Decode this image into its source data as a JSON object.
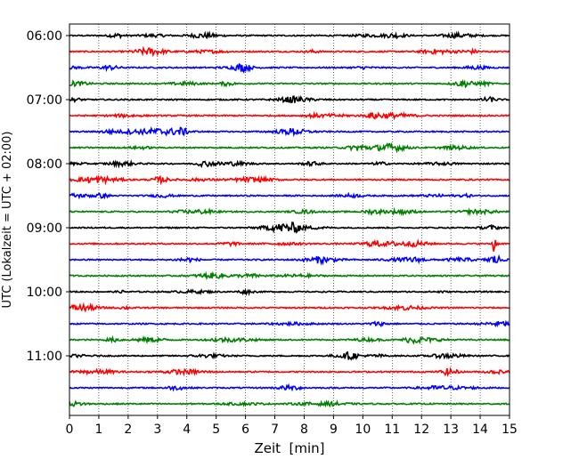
{
  "chart_data": {
    "type": "line",
    "title": "",
    "xlabel": "Zeit  [min]",
    "ylabel": "UTC (Lokalzeit = UTC + 02:00)",
    "xlim": [
      0,
      15
    ],
    "x_ticks": [
      "0",
      "1",
      "2",
      "3",
      "4",
      "5",
      "6",
      "7",
      "8",
      "9",
      "10",
      "11",
      "12",
      "13",
      "14",
      "15"
    ],
    "y_ticks": [
      "06:00",
      "07:00",
      "08:00",
      "09:00",
      "10:00",
      "11:00"
    ],
    "grid": "vertical dotted",
    "traces_per_hour": 4,
    "trace_start": "06:00",
    "trace_count": 24,
    "trace_colors": [
      "#000000",
      "#ff0000",
      "#0000ff",
      "#008000"
    ],
    "events": [
      {
        "trace": 0,
        "minute": 1.6,
        "amplitude": 0.35
      },
      {
        "trace": 2,
        "minute": 5.9,
        "amplitude": 0.6
      },
      {
        "trace": 4,
        "minute": 14.3,
        "amplitude": 0.4
      },
      {
        "trace": 5,
        "minute": 10.4,
        "amplitude": 0.45
      },
      {
        "trace": 6,
        "minute": 3.8,
        "amplitude": 0.5
      },
      {
        "trace": 8,
        "minute": 4.6,
        "amplitude": 0.4
      },
      {
        "trace": 9,
        "minute": 3.1,
        "amplitude": 0.5
      },
      {
        "trace": 13,
        "minute": 14.5,
        "amplitude": 3.2
      },
      {
        "trace": 14,
        "minute": 14.5,
        "amplitude": 0.8
      },
      {
        "trace": 16,
        "minute": 6.0,
        "amplitude": 0.3
      },
      {
        "trace": 19,
        "minute": 1.5,
        "amplitude": 0.3
      },
      {
        "trace": 21,
        "minute": 13.0,
        "amplitude": 0.35
      }
    ]
  }
}
